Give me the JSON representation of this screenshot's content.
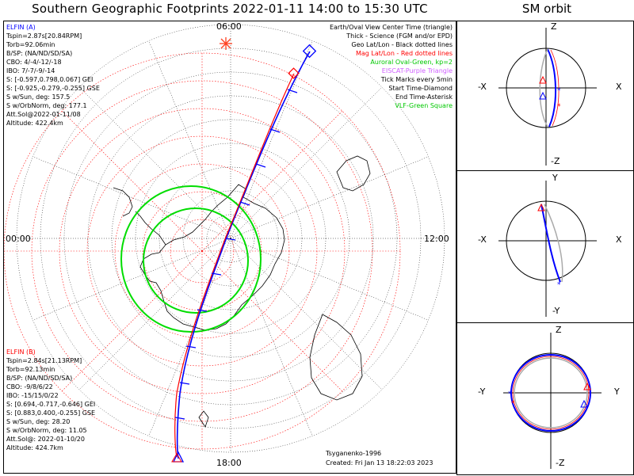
{
  "title": "Southern Geographic Footprints 2022-01-11 14:00 to 15:30 UTC",
  "sm_title": "SM orbit",
  "map": {
    "time_labels": {
      "top": "06:00",
      "left": "00:00",
      "right": "12:00",
      "bottom": "18:00"
    }
  },
  "elfin_a": {
    "header": "ELFIN (A)",
    "lines": [
      "Tspin=2.87s[20.84RPM]",
      "Torb=92.06min",
      "B/SP: (NA/ND/SD/SA)",
      "CBO: 4/-4/-12/-18",
      "IBO: 7/-7/-9/-14",
      "S: [-0.597,0.798,0.067] GEI",
      "S: [-0.925,-0.279,-0.255] GSE",
      "S w/Sun, deg: 157.5",
      "S w/OrbNorm, deg: 177.1",
      "Att.Sol@2022-01-11/08",
      "Altitude: 422.4km"
    ]
  },
  "elfin_b": {
    "header": "ELFIN (B)",
    "lines": [
      "Tspin=2.84s[21.13RPM]",
      "Torb=92.13min",
      "B/SP: (NA/ND/SD/SA)",
      "CBO: -9/8/6/22",
      "IBO: -15/15/0/22",
      "S: [0.694,-0.717,-0.646] GEI",
      "S: [0.883,0.400,-0.255] GSE",
      "S w/Sun, deg: 28.20",
      "S w/OrbNorm, deg: 11.05",
      "Att.Sol@: 2022-01-10/20",
      "Altitude: 424.7km"
    ]
  },
  "legend": [
    {
      "text": "Earth/Oval View Center Time (triangle)",
      "color": "#000000"
    },
    {
      "text": "Thick - Science (FGM and/or EPD)",
      "color": "#000000"
    },
    {
      "text": "Geo Lat/Lon - Black dotted lines",
      "color": "#000000"
    },
    {
      "text": "Mag Lat/Lon - Red dotted lines",
      "color": "#ff0000"
    },
    {
      "text": "Auroral Oval-Green, kp=2",
      "color": "#00c800"
    },
    {
      "text": "EISCAT-Purple Triangle",
      "color": "#d060ff"
    },
    {
      "text": "Tick Marks every 5min",
      "color": "#000000"
    },
    {
      "text": "Start Time-Diamond",
      "color": "#000000"
    },
    {
      "text": "End Time-Asterisk",
      "color": "#000000"
    },
    {
      "text": "VLF-Green Square",
      "color": "#00c800"
    }
  ],
  "footer": {
    "model": "Tsyganenko-1996",
    "created": "Created: Fri Jan 13 18:22:03 2023"
  },
  "sm_panels": [
    {
      "top": "Z",
      "bottom": "-Z",
      "left": "-X",
      "right": "X"
    },
    {
      "top": "Y",
      "bottom": "-Y",
      "left": "-X",
      "right": "X"
    },
    {
      "top": "Z",
      "bottom": "-Z",
      "left": "-Y",
      "right": "Y"
    }
  ],
  "colors": {
    "elfin_a": "#0000ff",
    "elfin_b": "#ff0000",
    "oval": "#00dd00",
    "geo_grid": "#000000",
    "mag_grid": "#ff0000",
    "eiscat": "#d060ff"
  }
}
